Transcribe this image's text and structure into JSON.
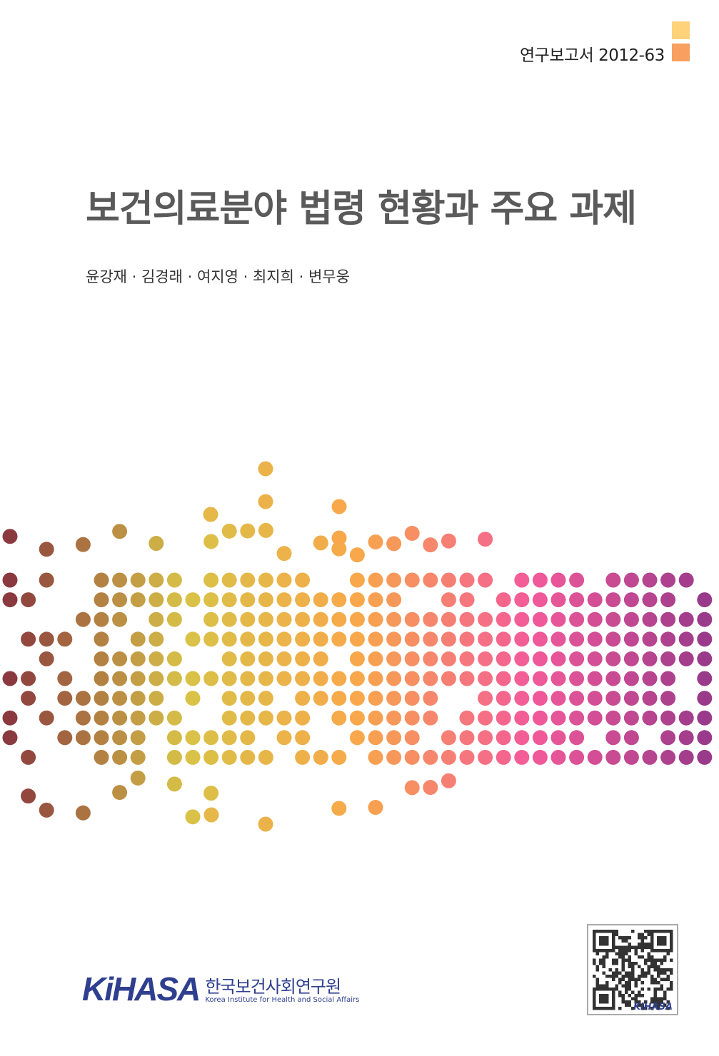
{
  "series_label": "연구보고서 2012-63",
  "title": "보건의료분야 법령 현황과 주요 과제",
  "authors": "윤강재 · 김경래 · 여지영 · 최지희 · 변무웅",
  "publisher": {
    "logo": "KiHASA",
    "name_kr": "한국보건사회연구원",
    "name_en": "Korea Institute for Health and Social Affairs"
  },
  "qr_code": {
    "label": "KiHASA"
  },
  "colors": {
    "square_top": "#fdd27a",
    "square_bottom": "#f7a060",
    "title": "#5a5a5a",
    "brand": "#2f3f8f",
    "dot_gradient": [
      "#8a3a3e",
      "#d8c247",
      "#f8a84a",
      "#f45a9a",
      "#9a3a8a"
    ]
  }
}
